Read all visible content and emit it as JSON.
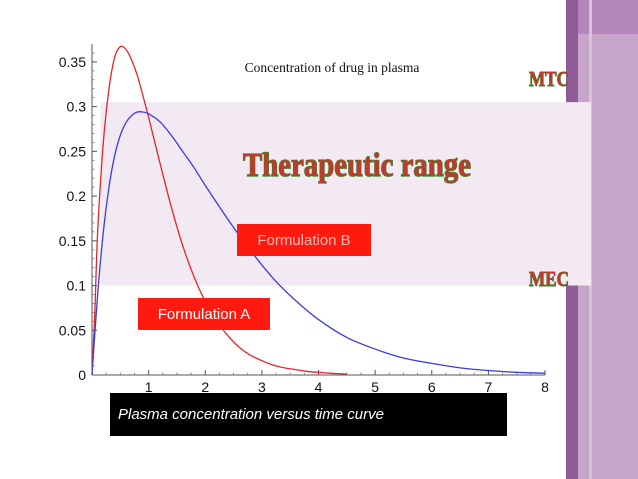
{
  "chart_data": {
    "type": "line",
    "title": "Concentration of drug in plasma",
    "xlabel": "",
    "ylabel": "",
    "xlim": [
      0,
      8
    ],
    "ylim": [
      0,
      0.37
    ],
    "xticks": [
      1,
      2,
      3,
      4,
      5,
      6,
      7,
      8
    ],
    "yticks": [
      0,
      0.05,
      0.1,
      0.15,
      0.2,
      0.25,
      0.3,
      0.35
    ],
    "xtick_labels": [
      "1",
      "2",
      "3",
      "4",
      "5",
      "6",
      "7",
      "8"
    ],
    "ytick_labels": [
      "0",
      "0.05",
      "0.1",
      "0.15",
      "0.2",
      "0.25",
      "0.3",
      "0.35"
    ],
    "grid": false,
    "series": [
      {
        "name": "Formulation A",
        "color": "#e8232a",
        "x": [
          0,
          0.05,
          0.1,
          0.2,
          0.3,
          0.4,
          0.5,
          0.6,
          0.7,
          0.8,
          0.9,
          1.0,
          1.2,
          1.4,
          1.6,
          1.8,
          2.0,
          2.2,
          2.4,
          2.6,
          2.8,
          3.0,
          3.2,
          3.4,
          3.6,
          3.8,
          4.0,
          4.2,
          4.5
        ],
        "values": [
          0,
          0.07,
          0.16,
          0.26,
          0.32,
          0.355,
          0.367,
          0.364,
          0.352,
          0.335,
          0.312,
          0.288,
          0.237,
          0.188,
          0.145,
          0.11,
          0.082,
          0.06,
          0.044,
          0.031,
          0.022,
          0.016,
          0.011,
          0.008,
          0.006,
          0.004,
          0.003,
          0.002,
          0.001
        ]
      },
      {
        "name": "Formulation B",
        "color": "#3c3cdc",
        "x": [
          0,
          0.1,
          0.2,
          0.3,
          0.4,
          0.5,
          0.6,
          0.7,
          0.8,
          0.9,
          1.0,
          1.2,
          1.4,
          1.6,
          1.8,
          2.0,
          2.4,
          2.8,
          3.2,
          3.6,
          4.0,
          4.5,
          5.0,
          5.5,
          6.0,
          6.5,
          7.0,
          7.5,
          8.0
        ],
        "values": [
          0,
          0.09,
          0.16,
          0.21,
          0.245,
          0.268,
          0.282,
          0.29,
          0.294,
          0.294,
          0.292,
          0.283,
          0.268,
          0.25,
          0.232,
          0.212,
          0.174,
          0.139,
          0.108,
          0.083,
          0.062,
          0.042,
          0.029,
          0.019,
          0.013,
          0.008,
          0.005,
          0.003,
          0.002
        ]
      }
    ],
    "band": {
      "from": 0.1,
      "to": 0.305,
      "color": "#f3e9f3"
    },
    "annotations": {
      "therapeutic": "Therapeutic range",
      "mtc": "MTC",
      "mec": "MEC"
    }
  },
  "labels": {
    "formulation_a": "Formulation A",
    "formulation_b": "Formulation B",
    "caption": "Plasma concentration versus time curve"
  },
  "colors": {
    "label_box": "#ff1a0f",
    "annotation_text": "#c0392b",
    "annotation_outline": "#2c8a2c"
  }
}
